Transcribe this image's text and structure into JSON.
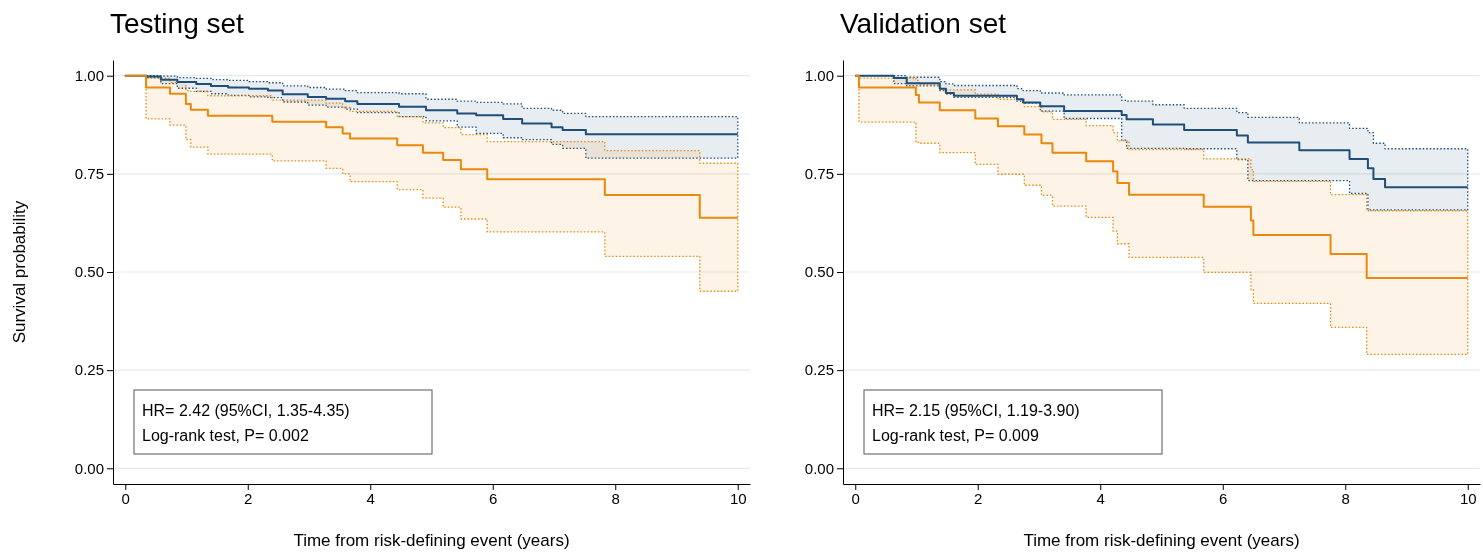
{
  "chart_data": [
    {
      "type": "step",
      "title": "Testing set",
      "xlabel": "Time from risk-defining event (years)",
      "ylabel": "Survival probability",
      "annotations": [
        "HR= 2.42 (95%CI, 1.35-4.35)",
        "Log-rank test, P= 0.002"
      ],
      "xlim": [
        -0.2,
        10.2
      ],
      "xticks": [
        0,
        2,
        4,
        6,
        8,
        10
      ],
      "ylim": [
        -0.04,
        1.04
      ],
      "yticks": [
        {
          "value": 0,
          "label": "0.00"
        },
        {
          "value": 0.25,
          "label": "0.25"
        },
        {
          "value": 0.5,
          "label": "0.50"
        },
        {
          "value": 0.75,
          "label": "0.75"
        },
        {
          "value": 1,
          "label": "1.00"
        }
      ],
      "grid": "y",
      "series": [
        {
          "color": "#1f4e79",
          "x": [
            0,
            0.35,
            0.58,
            0.85,
            1.16,
            1.4,
            1.68,
            2.02,
            2.33,
            2.57,
            2.98,
            3.28,
            3.59,
            3.79,
            4.47,
            4.91,
            5.42,
            5.73,
            6.17,
            6.48,
            6.96,
            7.14,
            7.52,
            10
          ],
          "values": [
            1,
            0.998,
            0.99,
            0.984,
            0.979,
            0.974,
            0.97,
            0.967,
            0.962,
            0.953,
            0.946,
            0.941,
            0.935,
            0.928,
            0.921,
            0.912,
            0.904,
            0.899,
            0.89,
            0.878,
            0.869,
            0.862,
            0.851,
            0.851
          ],
          "lower": [
            1,
            0.995,
            0.98,
            0.968,
            0.96,
            0.954,
            0.95,
            0.946,
            0.944,
            0.933,
            0.925,
            0.92,
            0.915,
            0.906,
            0.896,
            0.885,
            0.869,
            0.853,
            0.842,
            0.837,
            0.825,
            0.815,
            0.79,
            0.79
          ],
          "upper": [
            1,
            1,
            0.999,
            0.995,
            0.993,
            0.99,
            0.988,
            0.985,
            0.982,
            0.974,
            0.97,
            0.966,
            0.962,
            0.957,
            0.954,
            0.94,
            0.935,
            0.932,
            0.928,
            0.917,
            0.912,
            0.904,
            0.896,
            0.896
          ]
        },
        {
          "color": "#e8890c",
          "x": [
            0,
            0.34,
            0.73,
            0.99,
            1.07,
            1.35,
            2.4,
            3.28,
            3.55,
            3.67,
            4.44,
            4.86,
            5.19,
            5.48,
            5.91,
            7.83,
            9.38,
            10
          ],
          "values": [
            1,
            0.97,
            0.954,
            0.928,
            0.913,
            0.898,
            0.883,
            0.869,
            0.853,
            0.84,
            0.823,
            0.804,
            0.785,
            0.762,
            0.736,
            0.696,
            0.638,
            0.638
          ],
          "lower": [
            1,
            0.89,
            0.874,
            0.837,
            0.818,
            0.8,
            0.783,
            0.764,
            0.75,
            0.73,
            0.71,
            0.688,
            0.665,
            0.635,
            0.602,
            0.54,
            0.451,
            0.451
          ],
          "upper": [
            1,
            0.994,
            0.983,
            0.962,
            0.96,
            0.949,
            0.938,
            0.93,
            0.919,
            0.909,
            0.896,
            0.88,
            0.868,
            0.85,
            0.832,
            0.809,
            0.777,
            0.777
          ]
        }
      ]
    },
    {
      "type": "step",
      "title": "Validation set",
      "xlabel": "Time from risk-defining event (years)",
      "annotations": [
        "HR= 2.15 (95%CI, 1.19-3.90)",
        "Log-rank test, P= 0.009"
      ],
      "xlim": [
        -0.2,
        10.2
      ],
      "xticks": [
        0,
        2,
        4,
        6,
        8,
        10
      ],
      "ylim": [
        -0.04,
        1.04
      ],
      "yticks": [
        {
          "value": 0,
          "label": "0.00"
        },
        {
          "value": 0.25,
          "label": "0.25"
        },
        {
          "value": 0.5,
          "label": "0.50"
        },
        {
          "value": 0.75,
          "label": "0.75"
        },
        {
          "value": 1,
          "label": "1.00"
        }
      ],
      "grid": "y",
      "series": [
        {
          "color": "#1f4e79",
          "x": [
            0,
            0.63,
            0.84,
            1.38,
            1.48,
            1.61,
            2.64,
            2.74,
            3.02,
            3.41,
            4.35,
            4.43,
            4.86,
            5.37,
            6.23,
            6.41,
            7.25,
            8.07,
            8.37,
            8.46,
            8.65,
            10
          ],
          "values": [
            1,
            0.994,
            0.981,
            0.967,
            0.956,
            0.949,
            0.94,
            0.932,
            0.922,
            0.91,
            0.9,
            0.889,
            0.876,
            0.862,
            0.848,
            0.83,
            0.81,
            0.788,
            0.764,
            0.737,
            0.716,
            0.716
          ],
          "lower": [
            1,
            0.98,
            0.974,
            0.962,
            0.953,
            0.945,
            0.935,
            0.93,
            0.91,
            0.891,
            0.836,
            0.815,
            0.815,
            0.814,
            0.786,
            0.733,
            0.733,
            0.7,
            0.658,
            0.658,
            0.658,
            0.658
          ],
          "upper": [
            1,
            1,
            0.996,
            0.985,
            0.979,
            0.975,
            0.967,
            0.962,
            0.956,
            0.951,
            0.937,
            0.935,
            0.926,
            0.917,
            0.906,
            0.894,
            0.88,
            0.866,
            0.855,
            0.828,
            0.814,
            0.814
          ]
        },
        {
          "color": "#e8890c",
          "x": [
            0,
            0.06,
            0.99,
            1.04,
            1.38,
            1.96,
            2.33,
            2.76,
            3.04,
            3.22,
            3.77,
            4.21,
            4.28,
            4.47,
            5.69,
            6.46,
            6.5,
            7.76,
            8.35,
            10
          ],
          "values": [
            1,
            0.97,
            0.951,
            0.932,
            0.912,
            0.891,
            0.871,
            0.85,
            0.828,
            0.804,
            0.782,
            0.756,
            0.727,
            0.697,
            0.666,
            0.631,
            0.594,
            0.546,
            0.485,
            0.485
          ],
          "lower": [
            1,
            0.882,
            0.83,
            0.828,
            0.804,
            0.774,
            0.749,
            0.721,
            0.695,
            0.668,
            0.639,
            0.604,
            0.572,
            0.537,
            0.499,
            0.455,
            0.42,
            0.359,
            0.29,
            0.29
          ],
          "upper": [
            1,
            0.994,
            0.988,
            0.977,
            0.964,
            0.953,
            0.94,
            0.921,
            0.908,
            0.889,
            0.873,
            0.855,
            0.834,
            0.812,
            0.788,
            0.761,
            0.731,
            0.697,
            0.656,
            0.656
          ]
        }
      ]
    }
  ]
}
